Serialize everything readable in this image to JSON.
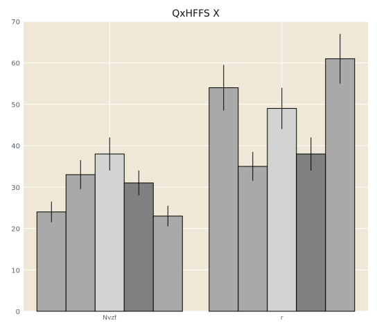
{
  "chart_data": {
    "type": "bar",
    "title": "QxHFFS X",
    "xlabel": "",
    "ylabel": "",
    "categories": [
      "Nvzf",
      "r"
    ],
    "ylim": [
      0,
      70
    ],
    "yticks": [
      0,
      10,
      20,
      30,
      40,
      50,
      60,
      70
    ],
    "grid": true,
    "background": "#efe8d6",
    "series": [
      {
        "values": [
          24,
          54
        ],
        "errors": [
          2.5,
          5.5
        ],
        "color": "#a9a9a9"
      },
      {
        "values": [
          33,
          35
        ],
        "errors": [
          3.5,
          3.5
        ],
        "color": "#a9a9a9"
      },
      {
        "values": [
          38,
          49
        ],
        "errors": [
          4,
          5
        ],
        "color": "#d3d3d3"
      },
      {
        "values": [
          31,
          38
        ],
        "errors": [
          3,
          4
        ],
        "color": "#808080"
      },
      {
        "values": [
          23,
          61
        ],
        "errors": [
          2.5,
          6
        ],
        "color": "#a9a9a9"
      }
    ]
  }
}
